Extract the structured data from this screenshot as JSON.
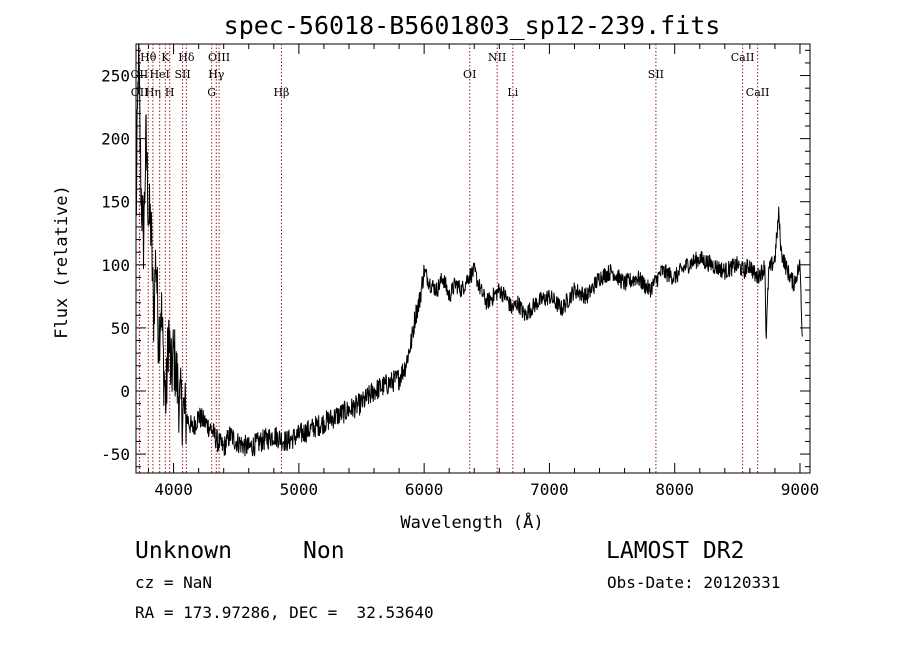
{
  "chart_data": {
    "type": "line",
    "title": "spec-56018-B5601803_sp12-239.fits",
    "xlabel": "Wavelength (Å)",
    "ylabel": "Flux (relative)",
    "xlim": [
      3700,
      9080
    ],
    "ylim": [
      -65,
      275
    ],
    "xticks": [
      4000,
      5000,
      6000,
      7000,
      8000,
      9000
    ],
    "yticks": [
      -50,
      0,
      50,
      100,
      150,
      200,
      250
    ],
    "grid": false,
    "series": [
      {
        "x": [
          3700,
          3720,
          3740,
          3760,
          3780,
          3800,
          3820,
          3840,
          3860,
          3880,
          3900,
          3920,
          3940,
          3960,
          3980,
          4000,
          4050,
          4100,
          4150,
          4200,
          4250,
          4300,
          4350,
          4400,
          4450,
          4500,
          4600,
          4700,
          4800,
          4900,
          5000,
          5100,
          5200,
          5300,
          5400,
          5500,
          5600,
          5700,
          5800,
          5850,
          5900,
          5930,
          5960,
          6000,
          6050,
          6100,
          6150,
          6200,
          6250,
          6300,
          6350,
          6400,
          6450,
          6500,
          6550,
          6600,
          6650,
          6700,
          6750,
          6800,
          6900,
          7000,
          7100,
          7200,
          7300,
          7400,
          7500,
          7600,
          7700,
          7800,
          7900,
          8000,
          8100,
          8200,
          8300,
          8400,
          8500,
          8550,
          8600,
          8650,
          8700,
          8720,
          8730,
          8750,
          8800,
          8830,
          8850,
          8900,
          8950,
          9000,
          9020
        ],
        "y": [
          130,
          270,
          160,
          120,
          200,
          140,
          130,
          60,
          110,
          40,
          70,
          20,
          -10,
          50,
          10,
          30,
          -10,
          -20,
          -30,
          -20,
          -25,
          -30,
          -40,
          -45,
          -35,
          -40,
          -45,
          -40,
          -35,
          -40,
          -35,
          -30,
          -25,
          -20,
          -15,
          -10,
          0,
          5,
          10,
          20,
          40,
          60,
          70,
          95,
          85,
          80,
          90,
          75,
          85,
          80,
          90,
          95,
          80,
          70,
          75,
          80,
          75,
          65,
          70,
          60,
          70,
          75,
          65,
          80,
          75,
          90,
          95,
          85,
          90,
          80,
          95,
          90,
          100,
          105,
          100,
          95,
          100,
          95,
          100,
          90,
          95,
          100,
          40,
          95,
          105,
          140,
          110,
          95,
          85,
          100,
          40
        ]
      }
    ],
    "lines": [
      {
        "label": "Hθ",
        "x": 3798,
        "row": 1
      },
      {
        "label": "K",
        "x": 3934,
        "row": 1
      },
      {
        "label": "Hδ",
        "x": 4102,
        "row": 1
      },
      {
        "label": "OIII",
        "x": 4363,
        "row": 1
      },
      {
        "label": "NII",
        "x": 6583,
        "row": 1
      },
      {
        "label": "CaII",
        "x": 8542,
        "row": 1
      },
      {
        "label": "OII",
        "x": 3727,
        "row": 2
      },
      {
        "label": "HeI",
        "x": 3889,
        "row": 2
      },
      {
        "label": "SII",
        "x": 4072,
        "row": 2
      },
      {
        "label": "Hγ",
        "x": 4341,
        "row": 2
      },
      {
        "label": "OI",
        "x": 6364,
        "row": 2
      },
      {
        "label": "SII",
        "x": 7850,
        "row": 2
      },
      {
        "label": "OII",
        "x": 3729,
        "row": 3
      },
      {
        "label": "Hη",
        "x": 3835,
        "row": 3
      },
      {
        "label": "H",
        "x": 3969,
        "row": 3
      },
      {
        "label": "G",
        "x": 4304,
        "row": 3
      },
      {
        "label": "Hβ",
        "x": 4861,
        "row": 3
      },
      {
        "label": "Li",
        "x": 6708,
        "row": 3
      },
      {
        "label": "CaII",
        "x": 8662,
        "row": 3
      }
    ]
  },
  "info": {
    "object_class": "Unknown",
    "subclass": "Non",
    "cz": "cz = NaN",
    "coords": "RA = 173.97286, DEC =  32.53640",
    "survey": "LAMOST DR2",
    "obs_date": "Obs-Date: 20120331"
  }
}
